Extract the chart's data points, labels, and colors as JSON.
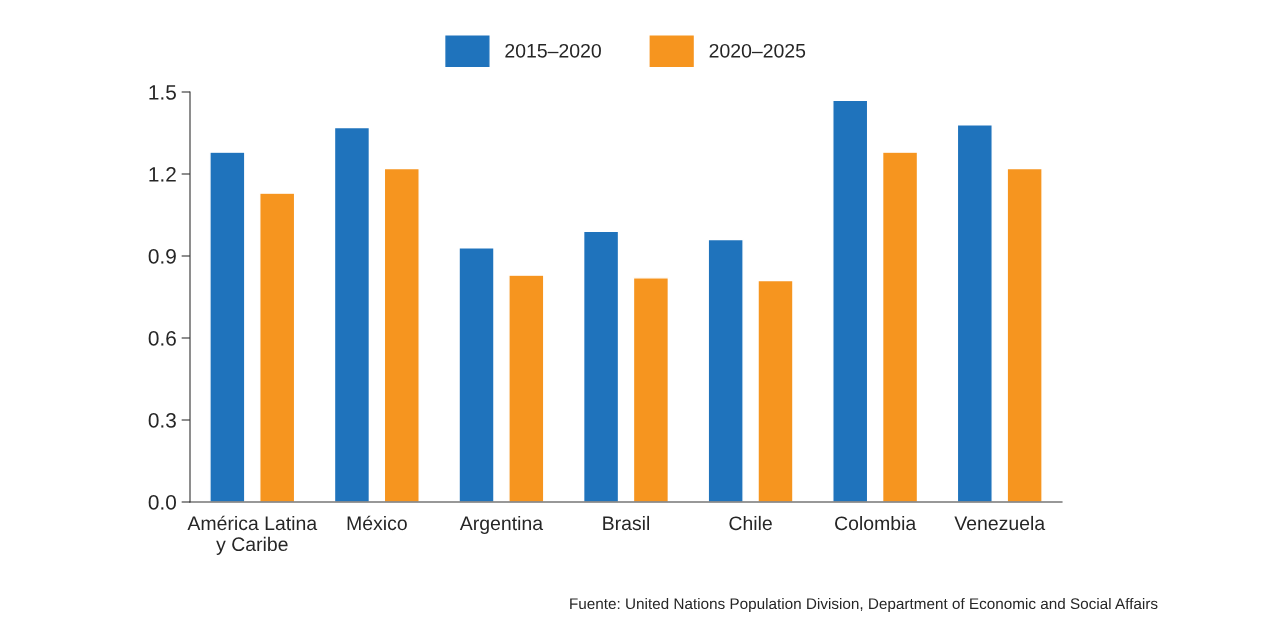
{
  "chart_data": {
    "type": "bar",
    "categories": [
      "América Latina\ny Caribe",
      "México",
      "Argentina",
      "Brasil",
      "Chile",
      "Colombia",
      "Venezuela"
    ],
    "series": [
      {
        "name": "2015–2020",
        "color": "#1f73bc",
        "values": [
          1.28,
          1.37,
          0.93,
          0.99,
          0.96,
          1.47,
          1.38
        ]
      },
      {
        "name": "2020–2025",
        "color": "#f6951f",
        "values": [
          1.13,
          1.22,
          0.83,
          0.82,
          0.81,
          1.28,
          1.22
        ]
      }
    ],
    "ylim": [
      0,
      1.5
    ],
    "yticks": [
      {
        "value": 0,
        "label": "0.0"
      },
      {
        "value": 0.3,
        "label": "0.3"
      },
      {
        "value": 0.6,
        "label": "0.6"
      },
      {
        "value": 0.9,
        "label": "0.9"
      },
      {
        "value": 1.2,
        "label": "1.2"
      },
      {
        "value": 1.5,
        "label": "1.5"
      }
    ],
    "grid": false,
    "legend": "top",
    "annotations": [
      "Fuente: United Nations Population Division, Department of Economic and Social Affairs"
    ]
  }
}
